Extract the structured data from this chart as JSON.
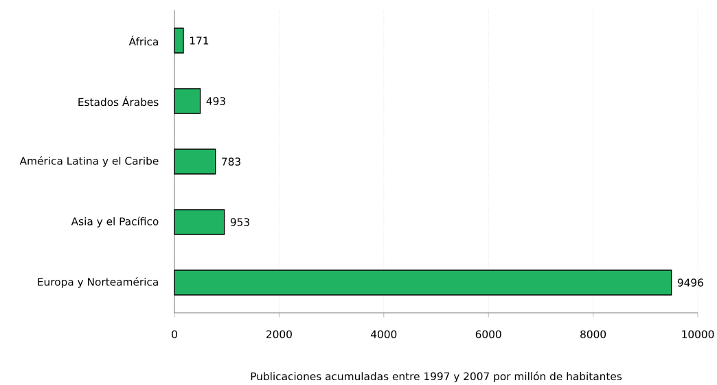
{
  "chart_data": {
    "type": "bar",
    "orientation": "horizontal",
    "categories": [
      "África",
      "Estados Árabes",
      "América Latina y el Caribe",
      "Asia y el Pacífico",
      "Europa y Norteamérica"
    ],
    "values": [
      171,
      493,
      783,
      953,
      9496
    ],
    "color": "#20b462",
    "data_labels": true,
    "xlabel": "Publicaciones acumuladas entre 1997 y 2007 por millón de habitantes",
    "xlim": [
      0,
      10000
    ],
    "xticks": [
      0,
      2000,
      4000,
      6000,
      8000,
      10000
    ],
    "grid": "x"
  }
}
